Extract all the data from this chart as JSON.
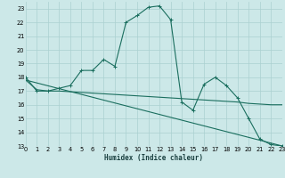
{
  "xlabel": "Humidex (Indice chaleur)",
  "bg_color": "#cce8e8",
  "grid_color": "#aad0d0",
  "line_color": "#1a6e5e",
  "xlim": [
    0,
    23
  ],
  "ylim": [
    13,
    23.5
  ],
  "yticks": [
    13,
    14,
    15,
    16,
    17,
    18,
    19,
    20,
    21,
    22,
    23
  ],
  "xticks": [
    0,
    1,
    2,
    3,
    4,
    5,
    6,
    7,
    8,
    9,
    10,
    11,
    12,
    13,
    14,
    15,
    16,
    17,
    18,
    19,
    20,
    21,
    22,
    23
  ],
  "curve1_x": [
    0,
    1,
    2,
    3,
    4,
    5,
    6,
    7,
    8,
    9,
    10,
    11,
    12,
    13,
    14,
    15,
    16,
    17,
    18,
    19,
    20,
    21,
    22,
    23
  ],
  "curve1_y": [
    18.0,
    17.0,
    17.0,
    17.2,
    17.4,
    18.5,
    18.5,
    19.3,
    18.8,
    22.0,
    22.5,
    23.1,
    23.2,
    22.2,
    16.2,
    15.6,
    17.5,
    18.0,
    17.4,
    16.5,
    15.0,
    13.5,
    13.1,
    13.0
  ],
  "curve2_x": [
    0,
    1,
    2,
    3,
    4,
    5,
    6,
    7,
    8,
    9,
    10,
    11,
    12,
    13,
    14,
    15,
    16,
    17,
    18,
    19,
    20,
    21,
    22,
    23
  ],
  "curve2_y": [
    17.8,
    17.1,
    17.0,
    17.0,
    16.95,
    16.9,
    16.85,
    16.8,
    16.75,
    16.7,
    16.65,
    16.6,
    16.55,
    16.5,
    16.45,
    16.4,
    16.35,
    16.3,
    16.25,
    16.2,
    16.1,
    16.05,
    16.0,
    16.0
  ],
  "curve3_x": [
    0,
    23
  ],
  "curve3_y": [
    17.8,
    13.0
  ]
}
